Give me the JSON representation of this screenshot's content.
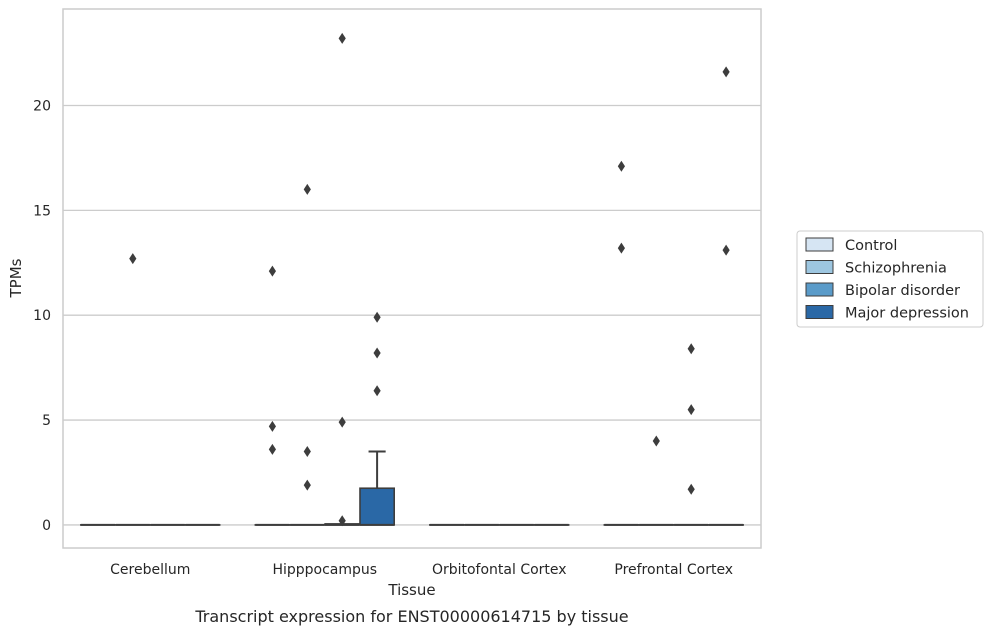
{
  "caption": "Transcript expression for ENST00000614715 by tissue",
  "chart_data": {
    "type": "box",
    "title": "",
    "xlabel": "Tissue",
    "ylabel": "TPMs",
    "ylim": [
      -1.1,
      24.6
    ],
    "yticks": [
      0,
      5,
      10,
      15,
      20
    ],
    "ytick_labels": [
      "0",
      "5",
      "10",
      "15",
      "20"
    ],
    "grid": "horizontal",
    "legend_position": "right",
    "categories": [
      "Cerebellum",
      "Hipppocampus",
      "Orbitofontal Cortex",
      "Prefrontal Cortex"
    ],
    "series": [
      {
        "name": "Control",
        "color": "#d6e5f3",
        "boxes": [
          {
            "q1": 0,
            "median": 0,
            "q3": 0,
            "whisker_low": 0,
            "whisker_high": 0,
            "outliers": []
          },
          {
            "q1": 0,
            "median": 0,
            "q3": 0,
            "whisker_low": 0,
            "whisker_high": 0,
            "outliers": [
              12.1,
              4.7,
              3.6
            ]
          },
          {
            "q1": 0,
            "median": 0,
            "q3": 0,
            "whisker_low": 0,
            "whisker_high": 0,
            "outliers": []
          },
          {
            "q1": 0,
            "median": 0,
            "q3": 0,
            "whisker_low": 0,
            "whisker_high": 0,
            "outliers": [
              17.1,
              13.2
            ]
          }
        ]
      },
      {
        "name": "Schizophrenia",
        "color": "#9dc6e0",
        "boxes": [
          {
            "q1": 0,
            "median": 0,
            "q3": 0,
            "whisker_low": 0,
            "whisker_high": 0,
            "outliers": [
              12.7
            ]
          },
          {
            "q1": 0,
            "median": 0,
            "q3": 0,
            "whisker_low": 0,
            "whisker_high": 0,
            "outliers": [
              16.0,
              3.5,
              1.9
            ]
          },
          {
            "q1": 0,
            "median": 0,
            "q3": 0,
            "whisker_low": 0,
            "whisker_high": 0,
            "outliers": []
          },
          {
            "q1": 0,
            "median": 0,
            "q3": 0,
            "whisker_low": 0,
            "whisker_high": 0,
            "outliers": [
              4.0
            ]
          }
        ]
      },
      {
        "name": "Bipolar disorder",
        "color": "#5a9bc9",
        "boxes": [
          {
            "q1": 0,
            "median": 0,
            "q3": 0,
            "whisker_low": 0,
            "whisker_high": 0,
            "outliers": []
          },
          {
            "q1": 0,
            "median": 0,
            "q3": 0.05,
            "whisker_low": 0,
            "whisker_high": 0.05,
            "outliers": [
              23.2,
              4.9,
              0.2
            ]
          },
          {
            "q1": 0,
            "median": 0,
            "q3": 0,
            "whisker_low": 0,
            "whisker_high": 0,
            "outliers": []
          },
          {
            "q1": 0,
            "median": 0,
            "q3": 0,
            "whisker_low": 0,
            "whisker_high": 0,
            "outliers": [
              8.4,
              5.5,
              1.7
            ]
          }
        ]
      },
      {
        "name": "Major depression",
        "color": "#2a68a6",
        "boxes": [
          {
            "q1": 0,
            "median": 0,
            "q3": 0,
            "whisker_low": 0,
            "whisker_high": 0,
            "outliers": []
          },
          {
            "q1": 0,
            "median": 0,
            "q3": 1.75,
            "whisker_low": 0,
            "whisker_high": 3.5,
            "outliers": [
              9.9,
              8.2,
              6.4
            ]
          },
          {
            "q1": 0,
            "median": 0,
            "q3": 0,
            "whisker_low": 0,
            "whisker_high": 0,
            "outliers": []
          },
          {
            "q1": 0,
            "median": 0,
            "q3": 0,
            "whisker_low": 0,
            "whisker_high": 0,
            "outliers": [
              21.6,
              13.1
            ]
          }
        ]
      }
    ]
  }
}
